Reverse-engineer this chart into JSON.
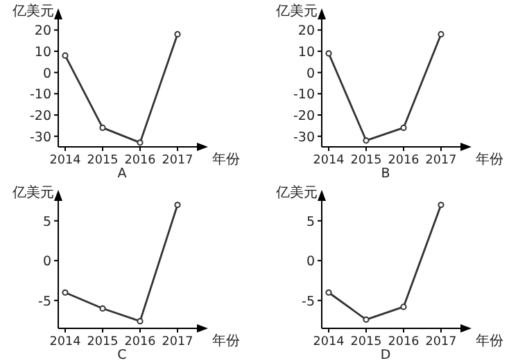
{
  "chart_data": [
    {
      "type": "line",
      "title": "A",
      "xlabel": "年份",
      "ylabel": "亿美元",
      "categories": [
        "2014",
        "2015",
        "2016",
        "2017"
      ],
      "series": [
        {
          "color": "#333333",
          "values": [
            8,
            -26,
            -33,
            18
          ]
        }
      ],
      "ylim": [
        -35,
        25
      ],
      "yticks": [
        -30,
        -20,
        -10,
        0,
        10,
        20
      ],
      "marker": "circle",
      "grid": false
    },
    {
      "type": "line",
      "title": "B",
      "xlabel": "年份",
      "ylabel": "亿美元",
      "categories": [
        "2014",
        "2015",
        "2016",
        "2017"
      ],
      "series": [
        {
          "color": "#333333",
          "values": [
            9,
            -32,
            -26,
            18
          ]
        }
      ],
      "ylim": [
        -35,
        25
      ],
      "yticks": [
        -30,
        -20,
        -10,
        0,
        10,
        20
      ],
      "marker": "circle",
      "grid": false
    },
    {
      "type": "line",
      "title": "C",
      "xlabel": "年份",
      "ylabel": "亿美元",
      "categories": [
        "2014",
        "2015",
        "2016",
        "2017"
      ],
      "series": [
        {
          "color": "#333333",
          "values": [
            -4,
            -6,
            -7.6,
            7
          ]
        }
      ],
      "ylim": [
        -8.5,
        7.5
      ],
      "yticks": [
        -5,
        0,
        5
      ],
      "marker": "circle",
      "grid": false
    },
    {
      "type": "line",
      "title": "D",
      "xlabel": "年份",
      "ylabel": "亿美元",
      "categories": [
        "2014",
        "2015",
        "2016",
        "2017"
      ],
      "series": [
        {
          "color": "#333333",
          "values": [
            -4,
            -7.4,
            -5.8,
            7
          ]
        }
      ],
      "ylim": [
        -8.5,
        7.5
      ],
      "yticks": [
        -5,
        0,
        5
      ],
      "marker": "circle",
      "grid": false
    }
  ]
}
